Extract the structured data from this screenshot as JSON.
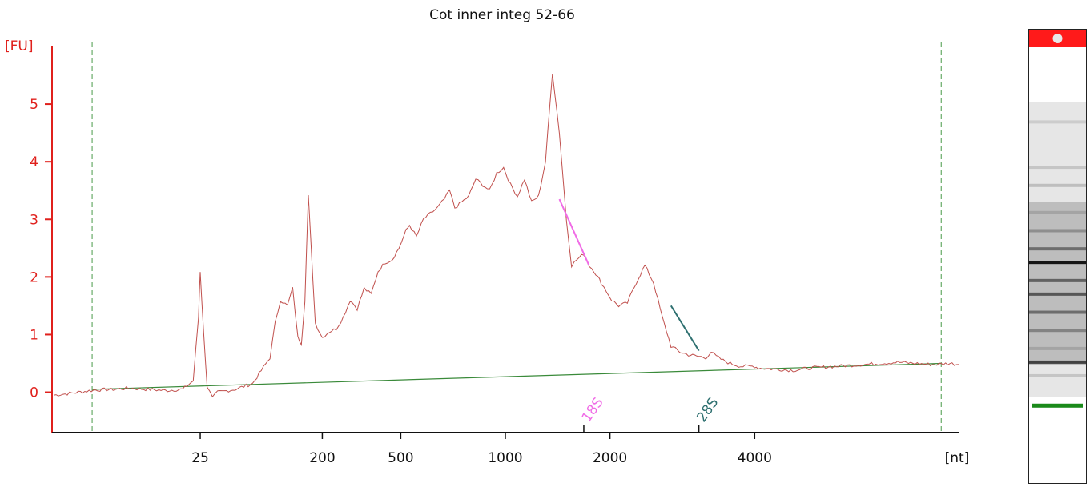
{
  "chart_data": {
    "type": "line",
    "title": "Cot inner integ 52-66",
    "ylabel": "[FU]",
    "xlabel": "[nt]",
    "ylim": [
      -0.7,
      6.0
    ],
    "yticks": [
      "0",
      "1",
      "2",
      "3",
      "4",
      "5"
    ],
    "ytick_values": [
      0,
      1,
      2,
      3,
      4,
      5
    ],
    "xticks": [
      "25",
      "200",
      "500",
      "1000",
      "2000",
      "4000"
    ],
    "x_axis_note": "time axis in seconds with size-ladder labels",
    "xlim_seconds": [
      17.5,
      69.5
    ],
    "xtick_seconds": [
      26.0,
      33.0,
      37.5,
      43.5,
      49.5,
      57.8
    ],
    "marker_labels": [
      "18S",
      "28S"
    ],
    "marker_seconds": [
      48.0,
      54.6
    ],
    "series": [
      {
        "x": [
          17.6,
          18.5,
          19.5,
          20.0,
          21.0,
          22.0,
          23.0,
          24.0,
          25.0,
          25.6,
          25.9,
          26.0,
          26.2,
          26.4,
          26.7,
          27.0,
          28.0,
          29.0,
          30.0,
          30.3,
          30.6,
          31.0,
          31.3,
          31.6,
          31.8,
          32.0,
          32.2,
          32.6,
          33.0,
          33.4,
          33.8,
          34.2,
          34.6,
          35.0,
          35.4,
          35.8,
          36.2,
          36.6,
          37.0,
          37.4,
          37.8,
          38.0,
          38.4,
          38.8,
          39.2,
          39.6,
          40.0,
          40.3,
          40.6,
          41.0,
          41.4,
          41.8,
          42.2,
          42.6,
          43.0,
          43.4,
          43.8,
          44.2,
          44.6,
          45.0,
          45.4,
          45.8,
          46.2,
          46.6,
          47.0,
          47.3,
          47.6,
          48.0,
          48.3,
          48.6,
          48.8,
          49.0,
          49.3,
          49.6,
          50.0,
          50.5,
          51.0,
          51.5,
          52.0,
          52.5,
          53.0,
          53.5,
          54.0,
          54.6,
          55.0,
          55.3,
          55.6,
          56.0,
          56.4,
          57.0,
          57.8,
          58.0,
          59.0,
          60.0,
          61.0,
          62.0,
          63.0,
          64.0,
          65.0,
          66.0,
          67.0,
          68.0,
          69.0,
          69.5
        ],
        "y": [
          -0.05,
          -0.02,
          0.02,
          0.04,
          0.05,
          0.07,
          0.05,
          0.03,
          0.05,
          0.2,
          1.3,
          2.1,
          1.0,
          0.1,
          -0.1,
          0.0,
          0.05,
          0.15,
          0.6,
          1.2,
          1.6,
          1.5,
          1.8,
          0.95,
          0.85,
          1.6,
          3.4,
          1.2,
          0.95,
          1.05,
          1.1,
          1.3,
          1.6,
          1.45,
          1.8,
          1.7,
          2.1,
          2.25,
          2.3,
          2.5,
          2.8,
          2.9,
          2.7,
          3.0,
          3.1,
          3.2,
          3.35,
          3.5,
          3.2,
          3.3,
          3.4,
          3.7,
          3.6,
          3.5,
          3.8,
          3.9,
          3.6,
          3.4,
          3.7,
          3.3,
          3.4,
          4.0,
          5.55,
          4.5,
          3.0,
          2.2,
          2.3,
          2.4,
          2.2,
          2.1,
          2.0,
          1.9,
          1.75,
          1.6,
          1.5,
          1.55,
          1.9,
          2.2,
          1.9,
          1.3,
          0.8,
          0.7,
          0.65,
          0.62,
          0.6,
          0.7,
          0.62,
          0.55,
          0.5,
          0.45,
          0.45,
          0.42,
          0.4,
          0.38,
          0.42,
          0.44,
          0.46,
          0.48,
          0.5,
          0.52,
          0.5,
          0.48,
          0.5,
          0.48
        ]
      }
    ],
    "baseline": {
      "x": [
        19.8,
        68.5
      ],
      "y": [
        0.05,
        0.5
      ]
    },
    "peak_segments": [
      {
        "label": "18S",
        "color": "#f06ce6",
        "x": [
          46.6,
          48.3
        ],
        "y": [
          3.35,
          2.2
        ]
      },
      {
        "label": "28S",
        "color": "#2e7070",
        "x": [
          53.0,
          54.6
        ],
        "y": [
          1.5,
          0.72
        ]
      }
    ],
    "window_lines_seconds": [
      19.8,
      68.5
    ],
    "grid": false,
    "legend": "none"
  },
  "colors": {
    "axis": "#e0201c",
    "trace": "#c0504d",
    "baseline": "#3a8a3a",
    "window_line": "#4a9a4a",
    "marker_18s": "#f06ce6",
    "marker_28s": "#2e7070",
    "gel_upper_marker": "#ff1a1a",
    "gel_lower_marker": "#1a8a1a"
  },
  "gel_lane": {
    "bands": [
      {
        "pos": 0.2,
        "intensity": 0.12
      },
      {
        "pos": 0.3,
        "intensity": 0.15
      },
      {
        "pos": 0.34,
        "intensity": 0.18
      },
      {
        "pos": 0.4,
        "intensity": 0.3
      },
      {
        "pos": 0.44,
        "intensity": 0.4
      },
      {
        "pos": 0.48,
        "intensity": 0.55
      },
      {
        "pos": 0.51,
        "intensity": 0.95
      },
      {
        "pos": 0.55,
        "intensity": 0.6
      },
      {
        "pos": 0.58,
        "intensity": 0.65
      },
      {
        "pos": 0.62,
        "intensity": 0.55
      },
      {
        "pos": 0.66,
        "intensity": 0.45
      },
      {
        "pos": 0.7,
        "intensity": 0.3
      },
      {
        "pos": 0.73,
        "intensity": 0.75
      },
      {
        "pos": 0.76,
        "intensity": 0.15
      }
    ]
  }
}
